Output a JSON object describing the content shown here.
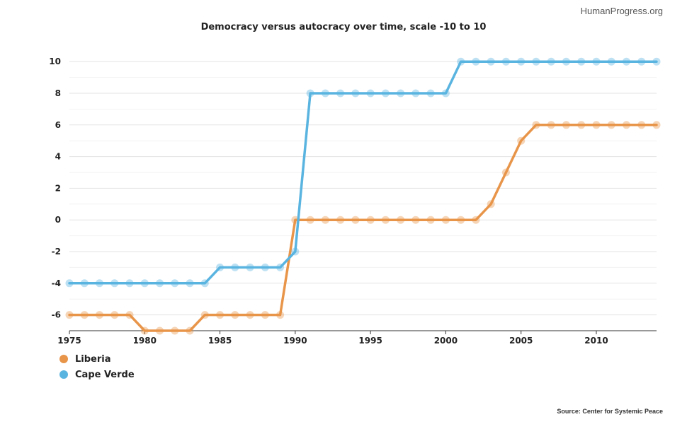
{
  "header": {
    "credit": "HumanProgress.org",
    "source": "Source: Center for Systemic Peace"
  },
  "chart_data": {
    "type": "line",
    "title": "Democracy versus autocracy over time, scale -10 to 10",
    "xlabel": "",
    "ylabel": "",
    "x": [
      1975,
      1976,
      1977,
      1978,
      1979,
      1980,
      1981,
      1982,
      1983,
      1984,
      1985,
      1986,
      1987,
      1988,
      1989,
      1990,
      1991,
      1992,
      1993,
      1994,
      1995,
      1996,
      1997,
      1998,
      1999,
      2000,
      2001,
      2002,
      2003,
      2004,
      2005,
      2006,
      2007,
      2008,
      2009,
      2010,
      2011,
      2012,
      2013,
      2014
    ],
    "xlim": [
      1975,
      2014
    ],
    "ylim": [
      -7,
      10.5
    ],
    "x_ticks": [
      "1975",
      "1980",
      "1985",
      "1990",
      "1995",
      "2000",
      "2005",
      "2010"
    ],
    "y_ticks": [
      "10",
      "8",
      "6",
      "4",
      "2",
      "0",
      "-2",
      "-4",
      "-6"
    ],
    "legend_position": "bottom-left",
    "series": [
      {
        "name": "Liberia",
        "color": "#e8954a",
        "values": [
          -6,
          -6,
          -6,
          -6,
          -6,
          -7,
          -7,
          -7,
          -7,
          -6,
          -6,
          -6,
          -6,
          -6,
          -6,
          0,
          0,
          0,
          0,
          0,
          0,
          0,
          0,
          0,
          0,
          0,
          0,
          0,
          1,
          3,
          5,
          6,
          6,
          6,
          6,
          6,
          6,
          6,
          6,
          6
        ]
      },
      {
        "name": "Cape Verde",
        "color": "#5ab4e0",
        "values": [
          -4,
          -4,
          -4,
          -4,
          -4,
          -4,
          -4,
          -4,
          -4,
          -4,
          -3,
          -3,
          -3,
          -3,
          -3,
          -2,
          8,
          8,
          8,
          8,
          8,
          8,
          8,
          8,
          8,
          8,
          10,
          10,
          10,
          10,
          10,
          10,
          10,
          10,
          10,
          10,
          10,
          10,
          10,
          10
        ]
      }
    ]
  }
}
